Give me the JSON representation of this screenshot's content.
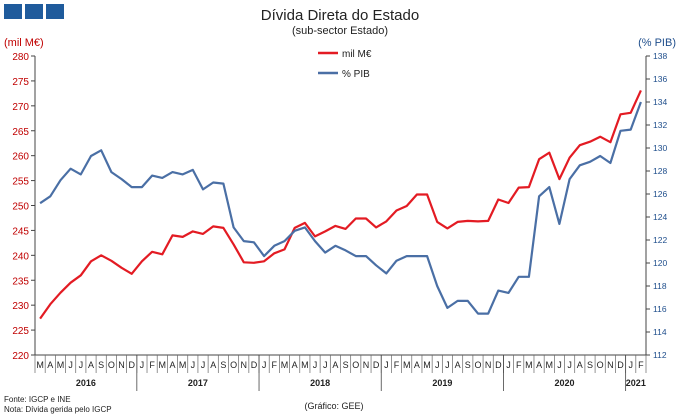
{
  "chart_data": {
    "type": "line",
    "title": "Dívida Direta do Estado",
    "subtitle": "(sub-sector Estado)",
    "left_axis_unit": "(mil M€)",
    "right_axis_unit": "(% PIB)",
    "left_ylim": [
      220,
      280
    ],
    "left_ticks": [
      220,
      225,
      230,
      235,
      240,
      245,
      250,
      255,
      260,
      265,
      270,
      275,
      280
    ],
    "right_ylim": [
      112,
      138
    ],
    "right_ticks": [
      112,
      114,
      116,
      118,
      120,
      122,
      124,
      126,
      128,
      130,
      132,
      134,
      136,
      138
    ],
    "months": [
      "M",
      "A",
      "M",
      "J",
      "J",
      "A",
      "S",
      "O",
      "N",
      "D",
      "J",
      "F",
      "M",
      "A",
      "M",
      "J",
      "J",
      "A",
      "S",
      "O",
      "N",
      "D",
      "J",
      "F",
      "M",
      "A",
      "M",
      "J",
      "J",
      "A",
      "S",
      "O",
      "N",
      "D",
      "J",
      "F",
      "M",
      "A",
      "M",
      "J",
      "J",
      "A",
      "S",
      "O",
      "N",
      "D",
      "J",
      "F",
      "M",
      "A",
      "M",
      "J",
      "J",
      "A",
      "S",
      "O",
      "N",
      "D",
      "J",
      "F"
    ],
    "years": [
      {
        "label": "2016",
        "start": 0,
        "count": 10
      },
      {
        "label": "2017",
        "start": 10,
        "count": 12
      },
      {
        "label": "2018",
        "start": 22,
        "count": 12
      },
      {
        "label": "2019",
        "start": 34,
        "count": 12
      },
      {
        "label": "2020",
        "start": 46,
        "count": 12
      },
      {
        "label": "2021",
        "start": 58,
        "count": 2
      }
    ],
    "series": [
      {
        "name": "mil M€",
        "axis": "left",
        "color": "#E31B23",
        "values": [
          227.3,
          230.2,
          232.5,
          234.5,
          236.0,
          238.8,
          240.0,
          238.9,
          237.5,
          236.3,
          238.8,
          240.7,
          240.2,
          244.0,
          243.7,
          244.8,
          244.3,
          245.8,
          245.5,
          242.2,
          238.6,
          238.5,
          238.8,
          240.4,
          241.2,
          245.5,
          246.5,
          243.8,
          244.8,
          245.9,
          245.3,
          247.4,
          247.4,
          245.6,
          246.8,
          249.0,
          249.9,
          252.2,
          252.2,
          246.7,
          245.4,
          246.7,
          246.9,
          246.8,
          246.9,
          251.2,
          250.5,
          253.6,
          253.7,
          259.3,
          260.6,
          255.3,
          259.6,
          262.1,
          262.8,
          263.8,
          262.7,
          268.3,
          268.6,
          273.1
        ]
      },
      {
        "name": "% PIB",
        "axis": "right",
        "color": "#4A6FA5",
        "values": [
          125.2,
          125.8,
          127.2,
          128.2,
          127.7,
          129.3,
          129.8,
          127.9,
          127.3,
          126.6,
          126.6,
          127.6,
          127.4,
          127.9,
          127.7,
          128.1,
          126.4,
          127.0,
          126.9,
          123.1,
          121.9,
          121.8,
          120.6,
          121.5,
          121.9,
          122.8,
          123.1,
          121.9,
          120.9,
          121.5,
          121.1,
          120.6,
          120.6,
          119.8,
          119.1,
          120.2,
          120.6,
          120.6,
          120.6,
          118.0,
          116.1,
          116.7,
          116.7,
          115.6,
          115.6,
          117.6,
          117.4,
          118.8,
          118.8,
          125.8,
          126.6,
          123.4,
          127.3,
          128.5,
          128.8,
          129.3,
          128.7,
          131.5,
          131.6,
          134.0
        ]
      }
    ],
    "legend_position": "top-center",
    "grid": false
  },
  "footer": {
    "source": "Fonte: IGCP e INE",
    "note": "Nota: Dívida gerida pelo IGCP",
    "credit": "(Gráfico: GEE)"
  }
}
